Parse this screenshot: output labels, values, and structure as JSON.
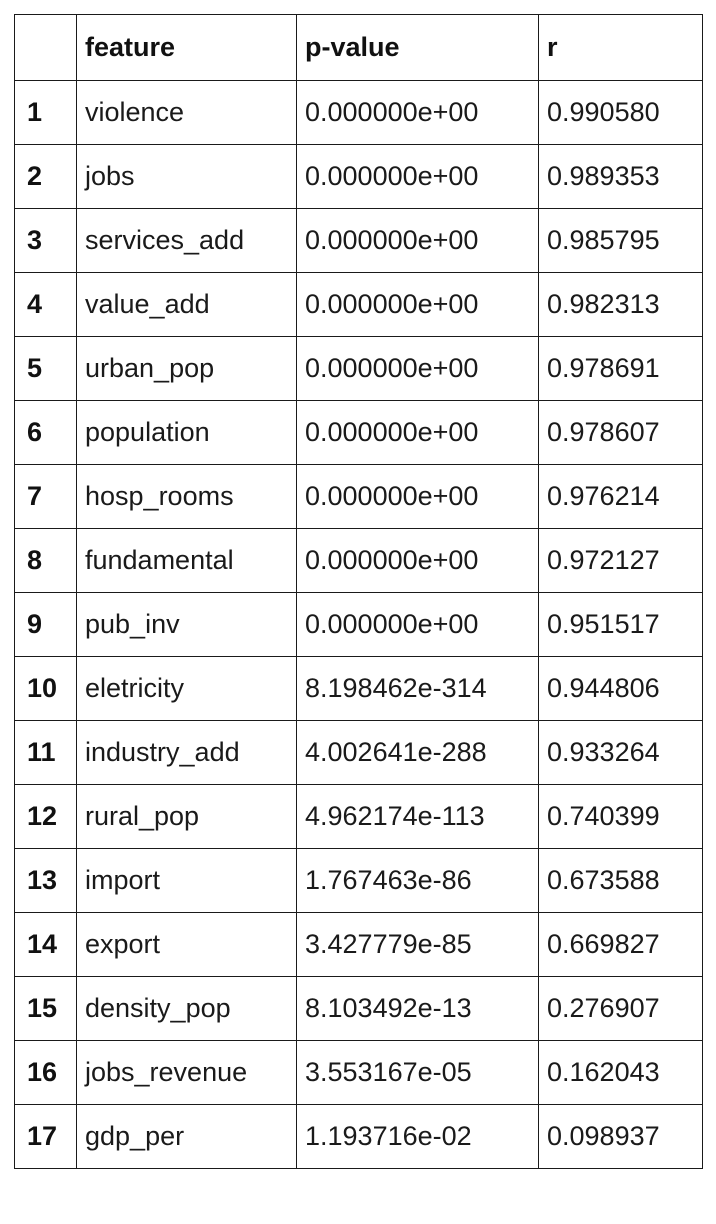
{
  "table": {
    "columns": [
      "",
      "feature",
      "p-value",
      "r"
    ],
    "rows": [
      {
        "index": "1",
        "feature": "violence",
        "p_value": "0.000000e+00",
        "r": "0.990580"
      },
      {
        "index": "2",
        "feature": "jobs",
        "p_value": "0.000000e+00",
        "r": "0.989353"
      },
      {
        "index": "3",
        "feature": "services_add",
        "p_value": "0.000000e+00",
        "r": "0.985795"
      },
      {
        "index": "4",
        "feature": "value_add",
        "p_value": "0.000000e+00",
        "r": "0.982313"
      },
      {
        "index": "5",
        "feature": "urban_pop",
        "p_value": "0.000000e+00",
        "r": "0.978691"
      },
      {
        "index": "6",
        "feature": "population",
        "p_value": "0.000000e+00",
        "r": "0.978607"
      },
      {
        "index": "7",
        "feature": "hosp_rooms",
        "p_value": "0.000000e+00",
        "r": "0.976214"
      },
      {
        "index": "8",
        "feature": "fundamental",
        "p_value": "0.000000e+00",
        "r": "0.972127"
      },
      {
        "index": "9",
        "feature": "pub_inv",
        "p_value": "0.000000e+00",
        "r": "0.951517"
      },
      {
        "index": "10",
        "feature": "eletricity",
        "p_value": "8.198462e-314",
        "r": "0.944806"
      },
      {
        "index": "11",
        "feature": "industry_add",
        "p_value": "4.002641e-288",
        "r": "0.933264"
      },
      {
        "index": "12",
        "feature": "rural_pop",
        "p_value": "4.962174e-113",
        "r": "0.740399"
      },
      {
        "index": "13",
        "feature": "import",
        "p_value": "1.767463e-86",
        "r": "0.673588"
      },
      {
        "index": "14",
        "feature": "export",
        "p_value": "3.427779e-85",
        "r": "0.669827"
      },
      {
        "index": "15",
        "feature": "density_pop",
        "p_value": "8.103492e-13",
        "r": "0.276907"
      },
      {
        "index": "16",
        "feature": "jobs_revenue",
        "p_value": "3.553167e-05",
        "r": "0.162043"
      },
      {
        "index": "17",
        "feature": "gdp_per",
        "p_value": "1.193716e-02",
        "r": "0.098937"
      }
    ]
  }
}
